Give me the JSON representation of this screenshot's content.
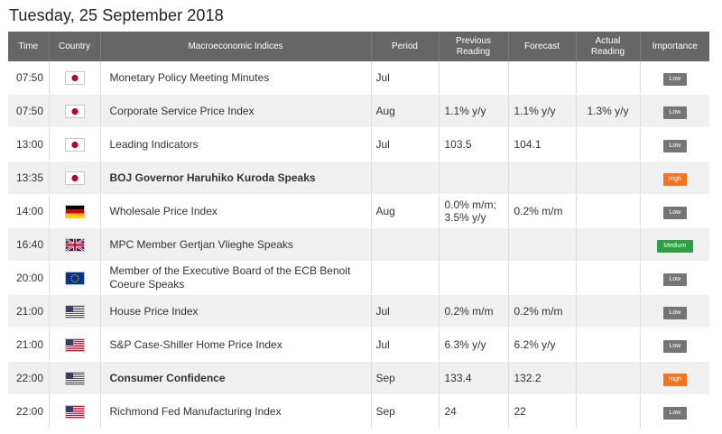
{
  "page": {
    "date_title": "Tuesday, 25 September 2018"
  },
  "table": {
    "headers": {
      "time": "Time",
      "country": "Country",
      "indices": "Macroeconomic Indices",
      "period": "Period",
      "previous": "Previous Reading",
      "forecast": "Forecast",
      "actual": "Actual Reading",
      "importance": "Importance"
    },
    "rows": [
      {
        "time": "07:50",
        "country": "japan-flag-icon",
        "name": "Monetary Policy Meeting Minutes",
        "period": "Jul",
        "previous": "",
        "forecast": "",
        "actual": "",
        "importance": "Low"
      },
      {
        "time": "07:50",
        "country": "japan-flag-icon",
        "name": "Corporate Service Price Index",
        "period": "Aug",
        "previous": "1.1% y/y",
        "forecast": "1.1% y/y",
        "actual": "1.3% y/y",
        "importance": "Low"
      },
      {
        "time": "13:00",
        "country": "japan-flag-icon",
        "name": "Leading Indicators",
        "period": "Jul",
        "previous": "103.5",
        "forecast": "104.1",
        "actual": "",
        "importance": "Low"
      },
      {
        "time": "13:35",
        "country": "japan-flag-icon",
        "name": "BOJ Governor Haruhiko Kuroda Speaks",
        "period": "",
        "previous": "",
        "forecast": "",
        "actual": "",
        "importance": "High"
      },
      {
        "time": "14:00",
        "country": "germany-flag-icon",
        "name": "Wholesale Price Index",
        "period": "Aug",
        "previous_line1": "0.0% m/m;",
        "previous_line2": "3.5% y/y",
        "forecast": "0.2% m/m",
        "actual": "",
        "importance": "Low"
      },
      {
        "time": "16:40",
        "country": "uk-flag-icon",
        "name": "MPC Member Gertjan Vlieghe Speaks",
        "period": "",
        "previous": "",
        "forecast": "",
        "actual": "",
        "importance": "Medium"
      },
      {
        "time": "20:00",
        "country": "eu-flag-icon",
        "name_line1": "Member of the Executive Board of the ECB Benoit",
        "name_line2": "Coeure Speaks",
        "period": "",
        "previous": "",
        "forecast": "",
        "actual": "",
        "importance": "Low"
      },
      {
        "time": "21:00",
        "country": "us-flag-icon",
        "name": "House Price Index",
        "period": "Jul",
        "previous": "0.2% m/m",
        "forecast": "0.2% m/m",
        "actual": "",
        "importance": "Low"
      },
      {
        "time": "21:00",
        "country": "us-flag-icon",
        "name": "S&P Case-Shiller Home Price Index",
        "period": "Jul",
        "previous": "6.3% y/y",
        "forecast": "6.2% y/y",
        "actual": "",
        "importance": "Low"
      },
      {
        "time": "22:00",
        "country": "us-flag-icon",
        "name": "Consumer Confidence",
        "period": "Sep",
        "previous": "133.4",
        "forecast": "132.2",
        "actual": "",
        "importance": "High"
      },
      {
        "time": "22:00",
        "country": "us-flag-icon",
        "name": "Richmond Fed Manufacturing Index",
        "period": "Sep",
        "previous": "24",
        "forecast": "22",
        "actual": "",
        "importance": "Low"
      }
    ]
  },
  "colors": {
    "header_bg": "#666666",
    "stripe": "#f0f0f0",
    "low": "#757575",
    "high": "#f4731f",
    "medium": "#2ea043",
    "actual_text": "#2e9e2e"
  }
}
